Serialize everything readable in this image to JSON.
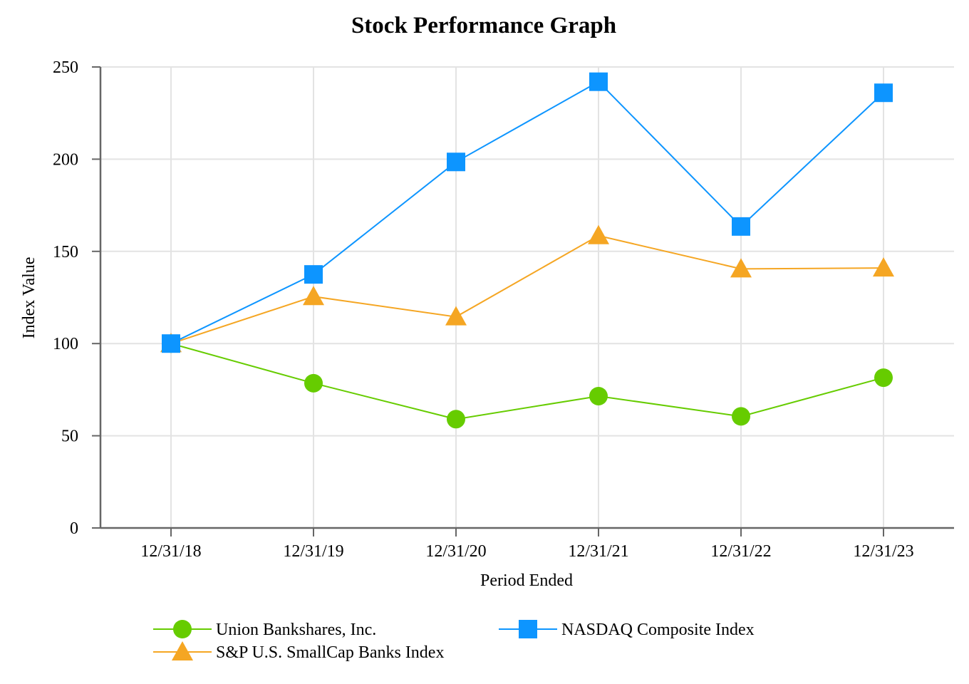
{
  "chart_data": {
    "type": "line",
    "title": "Stock Performance Graph",
    "xlabel": "Period Ended",
    "ylabel": "Index Value",
    "categories": [
      "12/31/18",
      "12/31/19",
      "12/31/20",
      "12/31/21",
      "12/31/22",
      "12/31/23"
    ],
    "ylim": [
      0,
      250
    ],
    "yticks": [
      0,
      50,
      100,
      150,
      200,
      250
    ],
    "grid": true,
    "legend_position": "bottom",
    "series": [
      {
        "name": "Union Bankshares, Inc.",
        "marker": "circle",
        "color": "#66cc00",
        "values": [
          100,
          78.5,
          59,
          71.5,
          60.5,
          81.5
        ]
      },
      {
        "name": "NASDAQ Composite Index",
        "marker": "square",
        "color": "#0d95ff",
        "values": [
          100,
          137.5,
          198.5,
          242,
          163.5,
          236
        ]
      },
      {
        "name": "S&P U.S. SmallCap Banks Index",
        "marker": "triangle",
        "color": "#f5a623",
        "values": [
          100,
          125.5,
          114.5,
          158.5,
          140.5,
          141
        ]
      }
    ]
  }
}
